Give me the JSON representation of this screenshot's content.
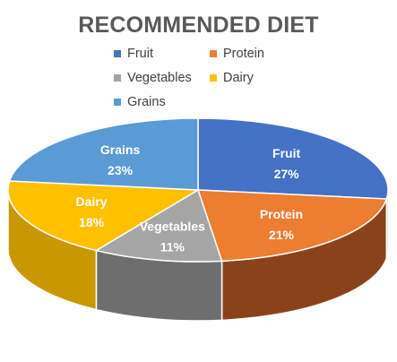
{
  "chart_data": {
    "type": "pie",
    "title": "RECOMMENDED DIET",
    "legend_position": "top",
    "slices": [
      {
        "name": "Fruit",
        "value": 27,
        "label": "27%",
        "color": "#4472C4",
        "side_color": "#2F5496"
      },
      {
        "name": "Protein",
        "value": 21,
        "label": "21%",
        "color": "#ED7D31",
        "side_color": "#8A4319"
      },
      {
        "name": "Vegetables",
        "value": 11,
        "label": "11%",
        "color": "#A5A5A5",
        "side_color": "#6E6E6E"
      },
      {
        "name": "Dairy",
        "value": 18,
        "label": "18%",
        "color": "#FFC000",
        "side_color": "#C99700"
      },
      {
        "name": "Grains",
        "value": 23,
        "label": "23%",
        "color": "#5B9BD5",
        "side_color": "#3B6E9E"
      }
    ]
  }
}
